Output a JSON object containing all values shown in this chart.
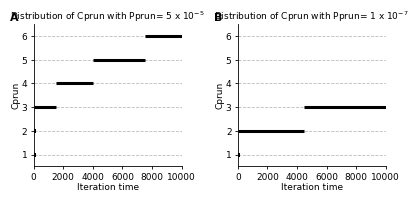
{
  "panel_A": {
    "label": "A",
    "title": "Distribution of Cprun with Pprun= 5 x 10$^{-5}$",
    "segments": [
      {
        "y": 1,
        "x_start": 0,
        "x_end": 0,
        "is_point": true
      },
      {
        "y": 2,
        "x_start": 0,
        "x_end": 0,
        "is_point": true
      },
      {
        "y": 3,
        "x_start": 0,
        "x_end": 1500,
        "is_point": false
      },
      {
        "y": 4,
        "x_start": 1500,
        "x_end": 4000,
        "is_point": false
      },
      {
        "y": 5,
        "x_start": 4000,
        "x_end": 7500,
        "is_point": false
      },
      {
        "y": 6,
        "x_start": 7500,
        "x_end": 10000,
        "is_point": false
      }
    ]
  },
  "panel_B": {
    "label": "B",
    "title": "Distribution of Cprun with Pprun= 1 x 10$^{-7}$",
    "segments": [
      {
        "y": 1,
        "x_start": 0,
        "x_end": 0,
        "is_point": true
      },
      {
        "y": 2,
        "x_start": 0,
        "x_end": 4500,
        "is_point": false
      },
      {
        "y": 3,
        "x_start": 4500,
        "x_end": 10000,
        "is_point": false
      }
    ]
  },
  "xlabel": "Iteration time",
  "ylabel": "Cprun",
  "xlim": [
    0,
    10000
  ],
  "ylim": [
    0.5,
    6.5
  ],
  "yticks": [
    1,
    2,
    3,
    4,
    5,
    6
  ],
  "xticks": [
    0,
    2000,
    4000,
    6000,
    8000,
    10000
  ],
  "line_color": "black",
  "line_width": 2.2,
  "point_marker": "s",
  "point_size": 3,
  "background_color": "white",
  "grid_color": "#bbbbbb",
  "grid_linestyle": "--",
  "font_size": 6.5,
  "title_font_size": 6.5,
  "panel_label_font_size": 8
}
